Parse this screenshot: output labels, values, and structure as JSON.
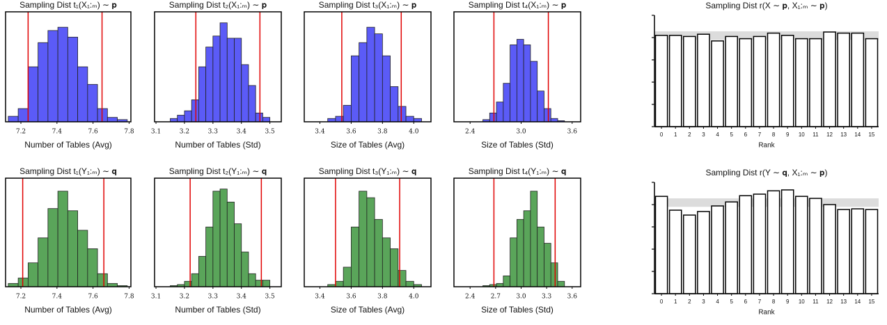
{
  "chart_data": [
    {
      "type": "histogram",
      "title": "Sampling Dist t₁(X₁:ₘ) ∼ 𝐩",
      "x_label": "Number of Tables (Avg)",
      "color": "#5b5bf7",
      "bins": [
        7.13,
        7.185,
        7.24,
        7.295,
        7.35,
        7.405,
        7.46,
        7.515,
        7.57,
        7.625,
        7.68,
        7.735,
        7.79
      ],
      "counts": [
        5,
        12,
        50,
        72,
        83,
        86,
        77,
        50,
        34,
        12,
        4,
        2
      ],
      "xlim": [
        7.115,
        7.81
      ],
      "xticks": [
        7.2,
        7.4,
        7.6,
        7.8
      ],
      "ylim": [
        0,
        100
      ],
      "reference_lines": [
        7.24,
        7.65
      ],
      "reference_color": "#e00000"
    },
    {
      "type": "histogram",
      "title": "Sampling Dist t₂(X₁:ₘ) ∼ 𝐩",
      "x_label": "Number of Tables (Std)",
      "color": "#5b5bf7",
      "bins": [
        3.15,
        3.175,
        3.2,
        3.225,
        3.25,
        3.275,
        3.3,
        3.325,
        3.35,
        3.375,
        3.4,
        3.425,
        3.45,
        3.475,
        3.5
      ],
      "counts": [
        3,
        6,
        10,
        20,
        50,
        68,
        78,
        90,
        76,
        76,
        52,
        33,
        8,
        4
      ],
      "xlim": [
        3.095,
        3.54
      ],
      "xticks": [
        3.1,
        3.2,
        3.3,
        3.4,
        3.5
      ],
      "ylim": [
        0,
        100
      ],
      "reference_lines": [
        3.24,
        3.465
      ],
      "reference_color": "#e00000"
    },
    {
      "type": "histogram",
      "title": "Sampling Dist t₃(X₁:ₘ) ∼ 𝐩",
      "x_label": "Size of Tables (Avg)",
      "color": "#5b5bf7",
      "bins": [
        3.45,
        3.5,
        3.55,
        3.6,
        3.65,
        3.7,
        3.75,
        3.8,
        3.85,
        3.9,
        3.95,
        4.0,
        4.05
      ],
      "counts": [
        3,
        5,
        15,
        60,
        72,
        86,
        80,
        60,
        32,
        14,
        5,
        3
      ],
      "xlim": [
        3.3,
        4.11
      ],
      "xticks": [
        3.4,
        3.6,
        3.8,
        {
          "value": 4,
          "label": "4.0"
        }
      ],
      "ylim": [
        0,
        100
      ],
      "reference_lines": [
        3.54,
        3.92
      ],
      "reference_color": "#e00000"
    },
    {
      "type": "histogram",
      "title": "Sampling Dist t₄(X₁:ₘ) ∼ 𝐩",
      "x_label": "Size of Tables (Std)",
      "color": "#5b5bf7",
      "bins": [
        2.55,
        2.63,
        2.71,
        2.79,
        2.87,
        2.95,
        3.03,
        3.11,
        3.19,
        3.27,
        3.35,
        3.43,
        3.51
      ],
      "counts": [
        2,
        8,
        18,
        35,
        70,
        75,
        70,
        55,
        28,
        12,
        3,
        1
      ],
      "xlim": [
        2.21,
        3.7
      ],
      "xticks": [
        2.4,
        {
          "value": 3,
          "label": "3.0"
        },
        3.6
      ],
      "ylim": [
        0,
        100
      ],
      "reference_lines": [
        2.68,
        3.32
      ],
      "reference_color": "#e00000"
    },
    {
      "type": "histogram",
      "title": "Sampling Dist t₁(Y₁:ₘ) ∼ 𝐪",
      "x_label": "Number of Tables (Avg)",
      "color": "#5aa55a",
      "bins": [
        7.13,
        7.185,
        7.24,
        7.295,
        7.35,
        7.405,
        7.46,
        7.515,
        7.57,
        7.625,
        7.68,
        7.735,
        7.79
      ],
      "counts": [
        3,
        8,
        22,
        45,
        72,
        88,
        70,
        52,
        35,
        12,
        3,
        1
      ],
      "xlim": [
        7.115,
        7.81
      ],
      "xticks": [
        7.2,
        7.4,
        7.6,
        7.8
      ],
      "ylim": [
        0,
        100
      ],
      "reference_lines": [
        7.21,
        7.66
      ],
      "reference_color": "#e00000"
    },
    {
      "type": "histogram",
      "title": "Sampling Dist t₂(Y₁:ₘ) ∼ 𝐪",
      "x_label": "Number of Tables (Std)",
      "color": "#5aa55a",
      "bins": [
        3.15,
        3.175,
        3.2,
        3.225,
        3.25,
        3.275,
        3.3,
        3.325,
        3.35,
        3.375,
        3.4,
        3.425,
        3.45,
        3.475,
        3.5
      ],
      "counts": [
        1,
        2,
        5,
        12,
        28,
        55,
        88,
        90,
        78,
        58,
        32,
        12,
        6,
        6
      ],
      "xlim": [
        3.095,
        3.54
      ],
      "xticks": [
        3.1,
        3.2,
        3.3,
        3.4,
        3.5
      ],
      "ylim": [
        0,
        100
      ],
      "reference_lines": [
        3.22,
        3.47
      ],
      "reference_color": "#e00000"
    },
    {
      "type": "histogram",
      "title": "Sampling Dist t₃(Y₁:ₘ) ∼ 𝐪",
      "x_label": "Size of Tables (Avg)",
      "color": "#5aa55a",
      "bins": [
        3.45,
        3.5,
        3.55,
        3.6,
        3.65,
        3.7,
        3.75,
        3.8,
        3.85,
        3.9,
        3.95,
        4.0,
        4.05
      ],
      "counts": [
        2,
        5,
        18,
        55,
        88,
        82,
        62,
        45,
        35,
        15,
        5,
        2
      ],
      "xlim": [
        3.3,
        4.11
      ],
      "xticks": [
        3.4,
        3.6,
        3.8,
        {
          "value": 4,
          "label": "4.0"
        }
      ],
      "ylim": [
        0,
        100
      ],
      "reference_lines": [
        3.5,
        3.91
      ],
      "reference_color": "#e00000"
    },
    {
      "type": "histogram",
      "title": "Sampling Dist t₄(Y₁:ₘ) ∼ 𝐪",
      "x_label": "Size of Tables (Std)",
      "color": "#5aa55a",
      "bins": [
        2.55,
        2.63,
        2.71,
        2.79,
        2.87,
        2.95,
        3.03,
        3.11,
        3.19,
        3.27,
        3.35,
        3.43,
        3.51
      ],
      "counts": [
        1,
        2,
        3,
        10,
        45,
        62,
        70,
        88,
        55,
        40,
        22,
        5
      ],
      "xlim": [
        2.21,
        3.7
      ],
      "xticks": [
        2.4,
        2.7,
        {
          "value": 3,
          "label": "3.0"
        },
        3.3,
        3.6
      ],
      "ylim": [
        0,
        100
      ],
      "reference_lines": [
        2.68,
        3.4
      ],
      "reference_color": "#e00000"
    },
    {
      "type": "rank",
      "title": "Sampling Dist r(X ∼ 𝐩, X₁:ₘ ∼ 𝐩)",
      "x_label": "Rank",
      "color": "#ffffff",
      "categories": [
        "0",
        "1",
        "2",
        "3",
        "4",
        "5",
        "6",
        "7",
        "8",
        "9",
        "10",
        "11",
        "12",
        "13",
        "14",
        "15"
      ],
      "values": [
        4.1,
        4.1,
        4.05,
        4.15,
        3.85,
        4.05,
        3.95,
        4.05,
        4.2,
        4.1,
        3.95,
        3.95,
        4.25,
        4.2,
        4.2,
        3.95
      ],
      "ylim": [
        0,
        5
      ],
      "yticks": [
        0,
        1,
        2,
        3,
        4,
        5
      ],
      "band": [
        3.9,
        4.28
      ],
      "band_color": "#dcdcdc"
    },
    {
      "type": "rank",
      "title": "Sampling Dist r(Y ∼ 𝐪, X₁:ₘ ∼ 𝐩)",
      "x_label": "Rank",
      "color": "#ffffff",
      "categories": [
        "0",
        "1",
        "2",
        "3",
        "4",
        "5",
        "6",
        "7",
        "8",
        "9",
        "10",
        "11",
        "12",
        "13",
        "14",
        "15"
      ],
      "values": [
        4.37,
        3.75,
        3.53,
        3.69,
        3.94,
        4.12,
        4.4,
        4.47,
        4.62,
        4.66,
        4.37,
        4.28,
        4.0,
        3.78,
        3.81,
        3.78
      ],
      "ylim": [
        0,
        5
      ],
      "yticks": [
        0,
        1,
        2,
        3,
        4,
        5
      ],
      "band": [
        3.9,
        4.28
      ],
      "band_color": "#dcdcdc"
    }
  ]
}
